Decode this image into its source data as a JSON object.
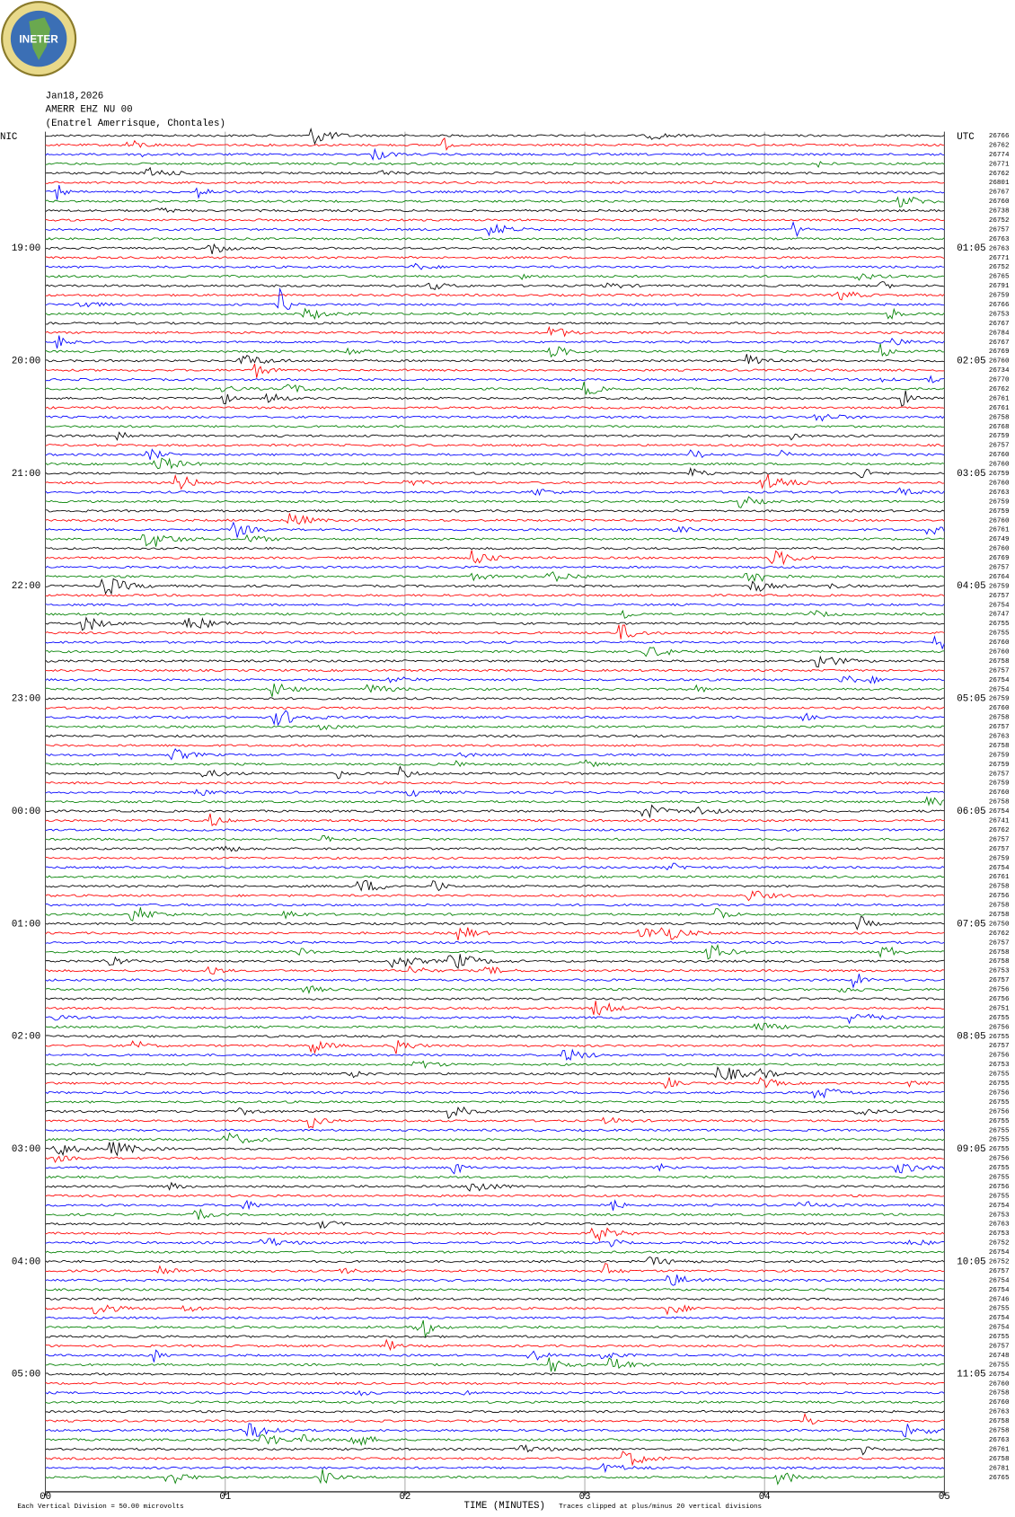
{
  "chart_data": {
    "type": "helicorder",
    "logo": "INETER",
    "date": "Jan18,2026",
    "station": "AMERR EHZ NU 00",
    "location": "(Enatrel Amerrisque, Chontales)",
    "left_zone": "NIC",
    "right_zone": "UTC",
    "left_times": [
      "19:00",
      "20:00",
      "21:00",
      "22:00",
      "23:00",
      "00:00",
      "01:00",
      "02:00",
      "03:00",
      "04:00",
      "05:00"
    ],
    "right_times": [
      "01:05",
      "02:05",
      "03:05",
      "04:05",
      "05:05",
      "06:05",
      "07:05",
      "08:05",
      "09:05",
      "10:05",
      "11:05"
    ],
    "trace_counts": [
      26766,
      26762,
      26774,
      26771,
      26762,
      26801,
      26767,
      26760,
      26738,
      26752,
      26757,
      26763,
      26763,
      26771,
      26752,
      26765,
      26791,
      26759,
      26766,
      26753,
      26767,
      26784,
      26767,
      26769,
      26760,
      26734,
      26770,
      26762,
      26761,
      26761,
      26758,
      26768,
      26759,
      26757,
      26760,
      26760,
      26759,
      26760,
      26763,
      26759,
      26759,
      26760,
      26761,
      26749,
      26760,
      26769,
      26757,
      26764,
      26759,
      26757,
      26754,
      26747,
      26755,
      26755,
      26760,
      26760,
      26758,
      26757,
      26754,
      26754,
      26759,
      26760,
      26758,
      26757,
      26763,
      26758,
      26759,
      26759,
      26757,
      26759,
      26760,
      26758,
      26754,
      26741,
      26762,
      26757,
      26757,
      26759,
      26754,
      26761,
      26758,
      26756,
      26758,
      26758,
      26750,
      26762,
      26757,
      26758,
      26758,
      26753,
      26757,
      26756,
      26756,
      26751,
      26755,
      26756,
      26755,
      26757,
      26756,
      26753,
      26755,
      26755,
      26756,
      26755,
      26756,
      26755,
      26755,
      26755,
      26755,
      26756,
      26755,
      26755,
      26756,
      26755,
      26754,
      26753,
      26763,
      26753,
      26752,
      26754,
      26752,
      26757,
      26754,
      26754,
      26746,
      26755,
      26754,
      26754,
      26755,
      26757,
      26748,
      26755,
      26754,
      26760,
      26758,
      26760,
      26763,
      26758,
      26758,
      26763,
      26761,
      26758,
      26781,
      26765
    ],
    "colors": [
      "#000000",
      "#ff0000",
      "#0000ff",
      "#008000"
    ],
    "xlim": [
      0,
      5
    ],
    "xticks": [
      {
        "value": 0,
        "label": "00"
      },
      {
        "value": 1,
        "label": "01"
      },
      {
        "value": 2,
        "label": "02"
      },
      {
        "value": 3,
        "label": "03"
      },
      {
        "value": 4,
        "label": "04"
      },
      {
        "value": 5,
        "label": "05"
      }
    ],
    "grid": true,
    "xlabel": "TIME (MINUTES)",
    "scale_note": "Each Vertical Division =   50.00 microvolts",
    "clip_note": "Traces clipped at plus/minus 20 vertical divisions"
  }
}
